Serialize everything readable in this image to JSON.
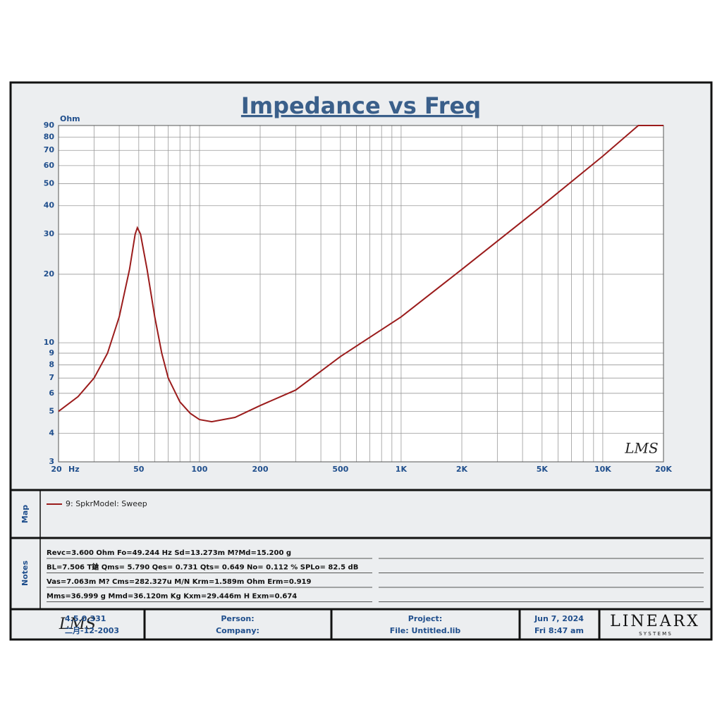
{
  "chart_data": {
    "type": "line",
    "title": "Impedance vs Freq",
    "xlabel": "Hz",
    "ylabel": "Ohm",
    "x": [
      20,
      25,
      30,
      35,
      40,
      45,
      48,
      49.2,
      51,
      55,
      60,
      65,
      70,
      80,
      90,
      100,
      115,
      150,
      200,
      300,
      500,
      1000,
      2000,
      5000,
      10000,
      15000,
      20000
    ],
    "series": [
      {
        "name": "9: SpkrModel: Sweep",
        "color": "#9b1c1c",
        "values": [
          5.0,
          5.8,
          7.0,
          9.0,
          13,
          21,
          30,
          32,
          30,
          21,
          13,
          9,
          7,
          5.5,
          4.9,
          4.6,
          4.5,
          4.7,
          5.3,
          6.2,
          8.7,
          13,
          21,
          40,
          66,
          90,
          90
        ]
      }
    ],
    "xlim": [
      20,
      20000
    ],
    "ylim": [
      3,
      90
    ],
    "xscale": "log",
    "yscale": "log",
    "xticks": [
      20,
      50,
      100,
      200,
      500,
      {
        "value": 1000,
        "label": "1K"
      },
      {
        "value": 2000,
        "label": "2K"
      },
      {
        "value": 5000,
        "label": "5K"
      },
      {
        "value": 10000,
        "label": "10K"
      },
      {
        "value": 20000,
        "label": "20K"
      }
    ],
    "yticks": [
      3,
      4,
      5,
      6,
      7,
      8,
      9,
      10,
      20,
      30,
      40,
      50,
      60,
      70,
      80,
      90
    ],
    "xgrid": [
      20,
      30,
      40,
      50,
      60,
      70,
      80,
      90,
      100,
      200,
      300,
      400,
      500,
      600,
      700,
      800,
      900,
      1000,
      2000,
      3000,
      4000,
      5000,
      6000,
      7000,
      8000,
      9000,
      10000,
      20000
    ],
    "grid": true,
    "watermark": "LMS"
  },
  "map_panel": {
    "label": "Map"
  },
  "notes_panel": {
    "label": "Notes",
    "lines": [
      "Revc=3.600 Ohm  Fo=49.244 Hz  Sd=13.273m M?Md=15.200 g",
      "BL=7.506 T鎗  Qms= 5.790  Qes= 0.731  Qts= 0.649  No= 0.112 %  SPLo= 82.5 dB",
      "Vas=7.063m M? Cms=282.327u M/N  Krm=1.589m Ohm  Erm=0.919",
      "Mms=36.999 g  Mmd=36.120m Kg  Kxm=29.446m H  Exm=0.674"
    ]
  },
  "footer": {
    "logo": "LMS",
    "version": "4.5.0.331",
    "build_date": "二月-12-2003",
    "person": "Person:",
    "company": "Company:",
    "project": "Project:",
    "file": "File: Untitled.lib",
    "date": "Jun  7, 2024",
    "time": "Fri  8:47 am",
    "brand": "LINEARX",
    "brand_sub": "S Y S T E M S"
  }
}
